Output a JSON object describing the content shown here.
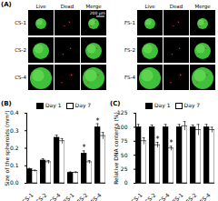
{
  "images": {
    "panel": "(A)",
    "groups": [
      {
        "columns": [
          "Live",
          "Dead",
          "Merge"
        ],
        "rows": [
          "CS-1",
          "CS-2",
          "CS-4"
        ],
        "scale_bar": "200 μm"
      },
      {
        "columns": [
          "Live",
          "Dead",
          "Merge"
        ],
        "rows": [
          "FS-1",
          "FS-2",
          "FS-4"
        ]
      }
    ]
  },
  "chart_data": [
    {
      "type": "bar",
      "panel": "(B)",
      "ylabel": "Size of the spheroids (mm²)",
      "categories": [
        "CS-1",
        "CS-2",
        "CS-4",
        "FS-1",
        "FS-2",
        "FS-4"
      ],
      "series": [
        {
          "name": "Day 1",
          "color": "#000000",
          "values": [
            0.08,
            0.13,
            0.26,
            0.06,
            0.17,
            0.32
          ],
          "errors": [
            0.005,
            0.01,
            0.015,
            0.005,
            0.015,
            0.02
          ]
        },
        {
          "name": "Day 7",
          "color": "#ffffff",
          "values": [
            0.07,
            0.12,
            0.24,
            0.06,
            0.12,
            0.27
          ],
          "errors": [
            0.005,
            0.01,
            0.015,
            0.005,
            0.01,
            0.02
          ]
        }
      ],
      "annotations": [
        {
          "category": "FS-2",
          "series": "Day 1",
          "text": "*"
        },
        {
          "category": "FS-4",
          "series": "Day 1",
          "text": "*"
        }
      ],
      "ylim": [
        0,
        0.4
      ],
      "yticks": [
        {
          "value": 0,
          "label": "0.0"
        },
        {
          "value": 0.1,
          "label": "0.1"
        },
        {
          "value": 0.2,
          "label": "0.2"
        },
        {
          "value": 0.3,
          "label": "0.3"
        },
        {
          "value": 0.4,
          "label": "0.4"
        }
      ],
      "legend": "top"
    },
    {
      "type": "bar",
      "panel": "(C)",
      "ylabel": "Relative DNA contents (%)",
      "categories": [
        "CS-1",
        "CS-2",
        "CS-4",
        "FS-1",
        "FS-2",
        "FS-4"
      ],
      "series": [
        {
          "name": "Day 1",
          "color": "#000000",
          "values": [
            100,
            100,
            100,
            100,
            100,
            100
          ],
          "errors": [
            5,
            4,
            5,
            5,
            4,
            5
          ]
        },
        {
          "name": "Day 7",
          "color": "#ffffff",
          "values": [
            75,
            68,
            62,
            102,
            95,
            95
          ],
          "errors": [
            6,
            5,
            4,
            8,
            10,
            5
          ]
        }
      ],
      "annotations": [
        {
          "category": "CS-2",
          "series": "Day 7",
          "text": "*"
        },
        {
          "category": "CS-4",
          "series": "Day 7",
          "text": "*"
        }
      ],
      "ylim": [
        0,
        125
      ],
      "yticks": [
        0,
        25,
        50,
        75,
        100,
        125
      ],
      "legend": "top"
    }
  ]
}
